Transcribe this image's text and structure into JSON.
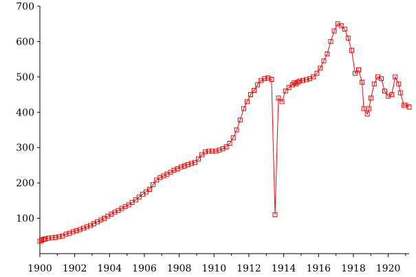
{
  "chart_data": {
    "type": "line",
    "title": "",
    "xlabel": "",
    "ylabel": "",
    "xlim": [
      1900,
      1921.2
    ],
    "ylim": [
      0,
      700
    ],
    "grid": false,
    "legend": "none",
    "x_ticks": [
      1900,
      1902,
      1904,
      1906,
      1908,
      1910,
      1912,
      1914,
      1916,
      1918,
      1920
    ],
    "x_tick_labels": [
      "1900",
      "1902",
      "1904",
      "1906",
      "1908",
      "1910",
      "1912",
      "1914",
      "1916",
      "1918",
      "1920"
    ],
    "y_ticks": [
      100,
      200,
      300,
      400,
      500,
      600,
      700
    ],
    "y_tick_labels": [
      "100",
      "200",
      "300",
      "400",
      "500",
      "600",
      "700"
    ],
    "colors": {
      "series": "#ff0000",
      "axis": "#000000",
      "background": "#ffffff"
    },
    "series": [
      {
        "marker": "open-square",
        "x": [
          1900.0,
          1900.1,
          1900.2,
          1900.3,
          1900.5,
          1900.7,
          1900.9,
          1901.1,
          1901.3,
          1901.5,
          1901.7,
          1901.9,
          1902.1,
          1902.3,
          1902.5,
          1902.7,
          1902.9,
          1903.1,
          1903.3,
          1903.5,
          1903.7,
          1903.9,
          1904.1,
          1904.3,
          1904.5,
          1904.7,
          1904.9,
          1905.1,
          1905.3,
          1905.5,
          1905.7,
          1905.9,
          1906.1,
          1906.3,
          1906.5,
          1906.7,
          1906.9,
          1907.1,
          1907.3,
          1907.5,
          1907.7,
          1907.9,
          1908.1,
          1908.3,
          1908.5,
          1908.7,
          1908.9,
          1909.1,
          1909.3,
          1909.5,
          1909.7,
          1909.9,
          1910.1,
          1910.3,
          1910.5,
          1910.7,
          1910.9,
          1911.1,
          1911.3,
          1911.5,
          1911.7,
          1911.9,
          1912.1,
          1912.3,
          1912.5,
          1912.7,
          1912.9,
          1913.1,
          1913.3,
          1913.5,
          1913.7,
          1913.9,
          1914.1,
          1914.3,
          1914.5,
          1914.6,
          1914.7,
          1914.8,
          1914.9,
          1915.1,
          1915.3,
          1915.5,
          1915.7,
          1915.9,
          1916.1,
          1916.3,
          1916.5,
          1916.7,
          1916.9,
          1917.1,
          1917.3,
          1917.5,
          1917.7,
          1917.9,
          1918.1,
          1918.3,
          1918.5,
          1918.6,
          1918.8,
          1918.9,
          1919.0,
          1919.2,
          1919.4,
          1919.6,
          1919.8,
          1920.0,
          1920.2,
          1920.4,
          1920.6,
          1920.7,
          1920.9,
          1921.0,
          1921.2
        ],
        "y": [
          35,
          38,
          40,
          42,
          44,
          45,
          46,
          48,
          50,
          55,
          58,
          62,
          65,
          68,
          72,
          76,
          80,
          85,
          90,
          95,
          100,
          106,
          112,
          117,
          122,
          128,
          133,
          138,
          145,
          152,
          160,
          168,
          175,
          182,
          195,
          208,
          215,
          220,
          225,
          230,
          236,
          240,
          245,
          248,
          252,
          255,
          258,
          268,
          280,
          288,
          290,
          290,
          290,
          293,
          297,
          302,
          312,
          328,
          350,
          378,
          410,
          430,
          450,
          462,
          478,
          490,
          495,
          497,
          493,
          110,
          440,
          430,
          460,
          470,
          478,
          483,
          480,
          485,
          488,
          490,
          492,
          495,
          500,
          510,
          525,
          545,
          565,
          600,
          630,
          650,
          645,
          635,
          610,
          575,
          510,
          520,
          485,
          410,
          395,
          410,
          440,
          480,
          500,
          495,
          460,
          445,
          450,
          500,
          480,
          455,
          420,
          420,
          415
        ]
      }
    ]
  }
}
